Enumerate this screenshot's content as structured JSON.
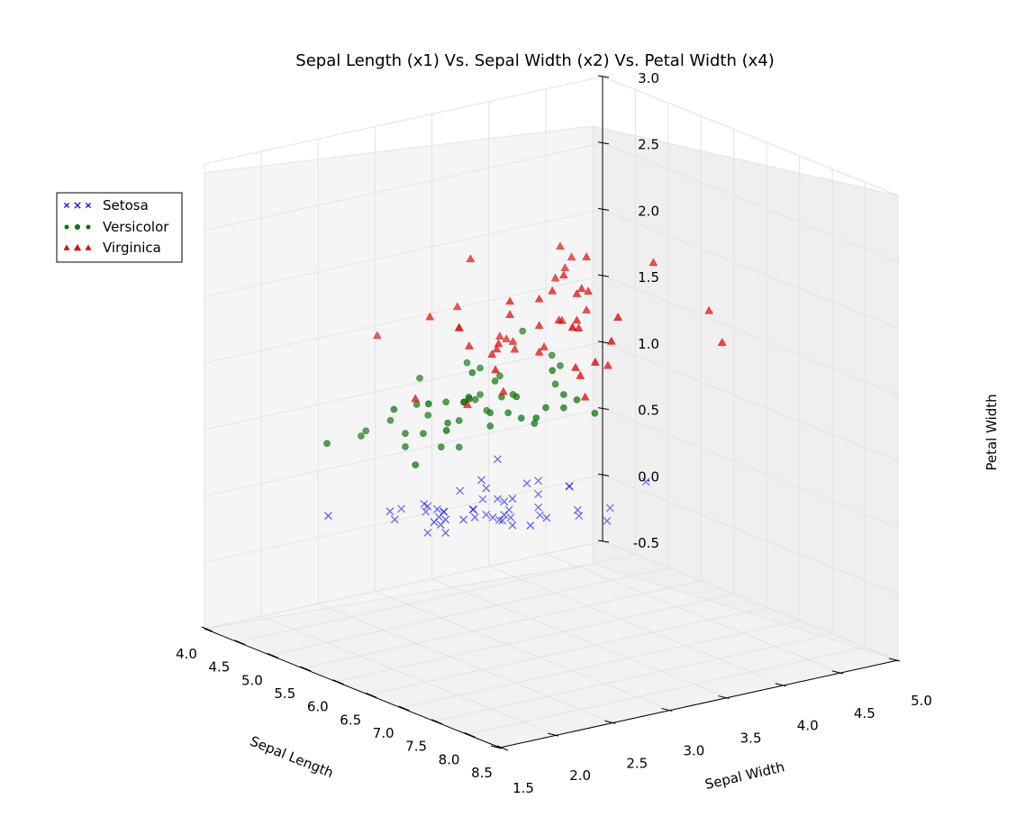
{
  "chart_data": {
    "type": "scatter3d",
    "title": "Sepal Length (x1) Vs. Sepal Width (x2) Vs. Petal Width (x4)",
    "xlabel": "Sepal Length",
    "ylabel": "Sepal Width",
    "zlabel": "Petal Width",
    "xlim": [
      4.0,
      8.5
    ],
    "ylim": [
      1.5,
      5.0
    ],
    "zlim": [
      -0.5,
      3.0
    ],
    "x_ticks": [
      "4.0",
      "4.5",
      "5.0",
      "5.5",
      "6.0",
      "6.5",
      "7.0",
      "7.5",
      "8.0",
      "8.5"
    ],
    "y_ticks": [
      "1.5",
      "2.0",
      "2.5",
      "3.0",
      "3.5",
      "4.0",
      "4.5",
      "5.0"
    ],
    "z_ticks": [
      "-0.5",
      "0.0",
      "0.5",
      "1.0",
      "1.5",
      "2.0",
      "2.5",
      "3.0"
    ],
    "grid": true,
    "legend_position": "top-left",
    "series": [
      {
        "name": "Setosa",
        "marker": "x",
        "color": "#0000ff",
        "points": [
          [
            5.1,
            3.5,
            0.2
          ],
          [
            4.9,
            3.0,
            0.2
          ],
          [
            4.7,
            3.2,
            0.2
          ],
          [
            4.6,
            3.1,
            0.2
          ],
          [
            5.0,
            3.6,
            0.2
          ],
          [
            5.4,
            3.9,
            0.4
          ],
          [
            4.6,
            3.4,
            0.3
          ],
          [
            5.0,
            3.4,
            0.2
          ],
          [
            4.4,
            2.9,
            0.2
          ],
          [
            4.9,
            3.1,
            0.1
          ],
          [
            5.4,
            3.7,
            0.2
          ],
          [
            4.8,
            3.4,
            0.2
          ],
          [
            4.8,
            3.0,
            0.1
          ],
          [
            4.3,
            3.0,
            0.1
          ],
          [
            5.8,
            4.0,
            0.2
          ],
          [
            5.7,
            4.4,
            0.4
          ],
          [
            5.4,
            3.9,
            0.4
          ],
          [
            5.1,
            3.5,
            0.3
          ],
          [
            5.7,
            3.8,
            0.3
          ],
          [
            5.1,
            3.8,
            0.3
          ],
          [
            5.4,
            3.4,
            0.2
          ],
          [
            5.1,
            3.7,
            0.4
          ],
          [
            4.6,
            3.6,
            0.2
          ],
          [
            5.1,
            3.3,
            0.5
          ],
          [
            4.8,
            3.4,
            0.2
          ],
          [
            5.0,
            3.0,
            0.2
          ],
          [
            5.0,
            3.4,
            0.4
          ],
          [
            5.2,
            3.5,
            0.2
          ],
          [
            5.2,
            3.4,
            0.2
          ],
          [
            4.7,
            3.2,
            0.2
          ],
          [
            4.8,
            3.1,
            0.2
          ],
          [
            5.4,
            3.4,
            0.4
          ],
          [
            5.2,
            4.1,
            0.1
          ],
          [
            5.5,
            4.2,
            0.2
          ],
          [
            4.9,
            3.1,
            0.2
          ],
          [
            5.0,
            3.2,
            0.2
          ],
          [
            5.5,
            3.5,
            0.2
          ],
          [
            4.9,
            3.6,
            0.1
          ],
          [
            4.4,
            3.0,
            0.2
          ],
          [
            5.1,
            3.4,
            0.2
          ],
          [
            5.0,
            3.5,
            0.3
          ],
          [
            4.5,
            2.3,
            0.3
          ],
          [
            4.4,
            3.2,
            0.2
          ],
          [
            5.0,
            3.5,
            0.6
          ],
          [
            5.1,
            3.8,
            0.4
          ],
          [
            4.8,
            3.0,
            0.3
          ],
          [
            5.1,
            3.8,
            0.2
          ],
          [
            4.6,
            3.2,
            0.2
          ],
          [
            5.3,
            3.7,
            0.2
          ],
          [
            5.0,
            3.3,
            0.2
          ]
        ]
      },
      {
        "name": "Versicolor",
        "marker": "o",
        "color": "#008000",
        "points": [
          [
            7.0,
            3.2,
            1.4
          ],
          [
            6.4,
            3.2,
            1.5
          ],
          [
            6.9,
            3.1,
            1.5
          ],
          [
            5.5,
            2.3,
            1.3
          ],
          [
            6.5,
            2.8,
            1.5
          ],
          [
            5.7,
            2.8,
            1.3
          ],
          [
            6.3,
            3.3,
            1.6
          ],
          [
            4.9,
            2.4,
            1.0
          ],
          [
            6.6,
            2.9,
            1.3
          ],
          [
            5.2,
            2.7,
            1.4
          ],
          [
            5.0,
            2.0,
            1.0
          ],
          [
            5.9,
            3.0,
            1.5
          ],
          [
            6.0,
            2.2,
            1.0
          ],
          [
            6.1,
            2.9,
            1.4
          ],
          [
            5.6,
            2.9,
            1.3
          ],
          [
            6.7,
            3.1,
            1.4
          ],
          [
            5.6,
            3.0,
            1.5
          ],
          [
            5.8,
            2.7,
            1.0
          ],
          [
            6.2,
            2.2,
            1.5
          ],
          [
            5.6,
            2.5,
            1.1
          ],
          [
            5.9,
            3.2,
            1.8
          ],
          [
            6.1,
            2.8,
            1.3
          ],
          [
            6.3,
            2.5,
            1.5
          ],
          [
            6.1,
            2.8,
            1.2
          ],
          [
            6.4,
            2.9,
            1.3
          ],
          [
            6.6,
            3.0,
            1.4
          ],
          [
            6.8,
            2.8,
            1.4
          ],
          [
            6.7,
            3.0,
            1.7
          ],
          [
            6.0,
            2.9,
            1.5
          ],
          [
            5.7,
            2.6,
            1.0
          ],
          [
            5.5,
            2.4,
            1.1
          ],
          [
            5.5,
            2.4,
            1.0
          ],
          [
            5.8,
            2.7,
            1.2
          ],
          [
            6.0,
            2.7,
            1.6
          ],
          [
            5.4,
            3.0,
            1.5
          ],
          [
            6.0,
            3.4,
            1.6
          ],
          [
            6.7,
            3.1,
            1.5
          ],
          [
            6.3,
            2.3,
            1.3
          ],
          [
            5.6,
            3.0,
            1.3
          ],
          [
            5.5,
            2.5,
            1.3
          ],
          [
            5.5,
            2.6,
            1.2
          ],
          [
            6.1,
            3.0,
            1.4
          ],
          [
            5.8,
            2.6,
            1.2
          ],
          [
            5.0,
            2.3,
            1.0
          ],
          [
            5.6,
            2.7,
            1.3
          ],
          [
            5.7,
            3.0,
            1.2
          ],
          [
            5.7,
            2.9,
            1.3
          ],
          [
            6.2,
            2.9,
            1.3
          ],
          [
            5.1,
            2.5,
            1.1
          ],
          [
            5.7,
            2.8,
            1.3
          ]
        ]
      },
      {
        "name": "Virginica",
        "marker": "^",
        "color": "#ff0000",
        "points": [
          [
            6.3,
            3.3,
            2.5
          ],
          [
            5.8,
            2.7,
            1.9
          ],
          [
            7.1,
            3.0,
            2.1
          ],
          [
            6.3,
            2.9,
            1.8
          ],
          [
            6.5,
            3.0,
            2.2
          ],
          [
            7.6,
            3.0,
            2.1
          ],
          [
            4.9,
            2.5,
            1.7
          ],
          [
            7.3,
            2.9,
            1.8
          ],
          [
            6.7,
            2.5,
            1.8
          ],
          [
            7.2,
            3.6,
            2.5
          ],
          [
            6.5,
            3.2,
            2.0
          ],
          [
            6.4,
            2.7,
            1.9
          ],
          [
            6.8,
            3.0,
            2.1
          ],
          [
            5.7,
            2.5,
            2.0
          ],
          [
            5.8,
            2.8,
            2.4
          ],
          [
            6.4,
            3.2,
            2.3
          ],
          [
            6.5,
            3.0,
            1.8
          ],
          [
            7.7,
            3.8,
            2.2
          ],
          [
            7.7,
            2.6,
            2.3
          ],
          [
            6.0,
            2.2,
            1.5
          ],
          [
            6.9,
            3.2,
            2.3
          ],
          [
            5.6,
            2.8,
            2.0
          ],
          [
            7.7,
            2.8,
            2.0
          ],
          [
            6.3,
            2.7,
            1.8
          ],
          [
            6.7,
            3.3,
            2.1
          ],
          [
            7.2,
            3.2,
            1.8
          ],
          [
            6.2,
            2.8,
            1.8
          ],
          [
            6.1,
            3.0,
            1.8
          ],
          [
            6.4,
            2.8,
            2.1
          ],
          [
            7.2,
            3.0,
            1.6
          ],
          [
            7.4,
            2.8,
            1.9
          ],
          [
            7.9,
            3.8,
            2.0
          ],
          [
            6.4,
            2.8,
            2.2
          ],
          [
            6.3,
            2.8,
            1.5
          ],
          [
            6.1,
            2.6,
            1.4
          ],
          [
            7.7,
            3.0,
            2.3
          ],
          [
            6.3,
            3.4,
            2.4
          ],
          [
            6.4,
            3.1,
            1.8
          ],
          [
            6.0,
            3.0,
            1.8
          ],
          [
            6.9,
            3.1,
            2.1
          ],
          [
            6.7,
            3.1,
            2.4
          ],
          [
            6.9,
            3.1,
            2.3
          ],
          [
            5.8,
            2.7,
            1.9
          ],
          [
            6.8,
            3.2,
            2.3
          ],
          [
            6.7,
            3.3,
            2.5
          ],
          [
            6.7,
            3.0,
            2.3
          ],
          [
            6.3,
            2.5,
            1.9
          ],
          [
            6.5,
            3.0,
            2.0
          ],
          [
            6.2,
            3.4,
            2.3
          ],
          [
            5.9,
            3.0,
            1.8
          ]
        ]
      }
    ]
  }
}
